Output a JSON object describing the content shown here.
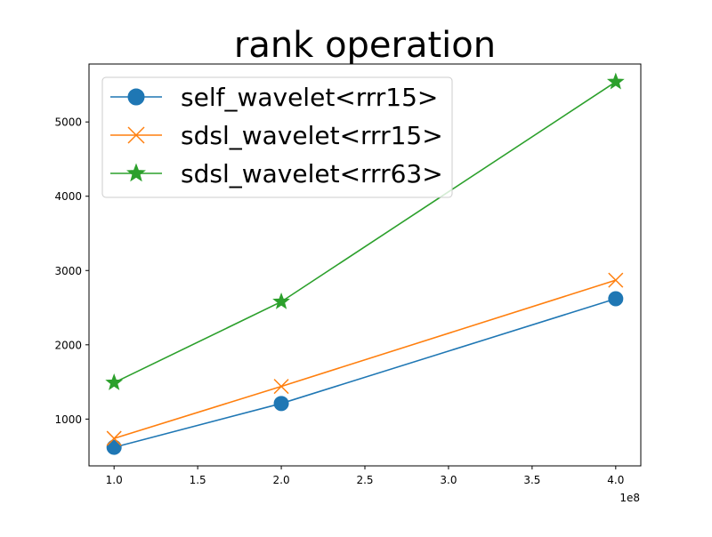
{
  "chart_data": {
    "type": "line",
    "title": "rank operation",
    "xlabel": "",
    "ylabel": "",
    "x_offset_label": "1e8",
    "xlim": [
      0.85,
      4.15
    ],
    "ylim": [
      370,
      5780
    ],
    "x_ticks": [
      1.0,
      1.5,
      2.0,
      2.5,
      3.0,
      3.5,
      4.0
    ],
    "x_tick_labels": [
      "1.0",
      "1.5",
      "2.0",
      "2.5",
      "3.0",
      "3.5",
      "4.0"
    ],
    "y_ticks": [
      1000,
      2000,
      3000,
      4000,
      5000
    ],
    "y_tick_labels": [
      "1000",
      "2000",
      "3000",
      "4000",
      "5000"
    ],
    "grid": false,
    "legend_position": "upper-left",
    "x": [
      1.0,
      2.0,
      4.0
    ],
    "series": [
      {
        "name": "self_wavelet<rrr15>",
        "values": [
          620,
          1210,
          2620
        ],
        "color": "#1f77b4",
        "marker": "circle"
      },
      {
        "name": "sdsl_wavelet<rrr15>",
        "values": [
          740,
          1440,
          2870
        ],
        "color": "#ff7f0e",
        "marker": "x"
      },
      {
        "name": "sdsl_wavelet<rrr63>",
        "values": [
          1490,
          2580,
          5540
        ],
        "color": "#2ca02c",
        "marker": "star"
      }
    ]
  }
}
